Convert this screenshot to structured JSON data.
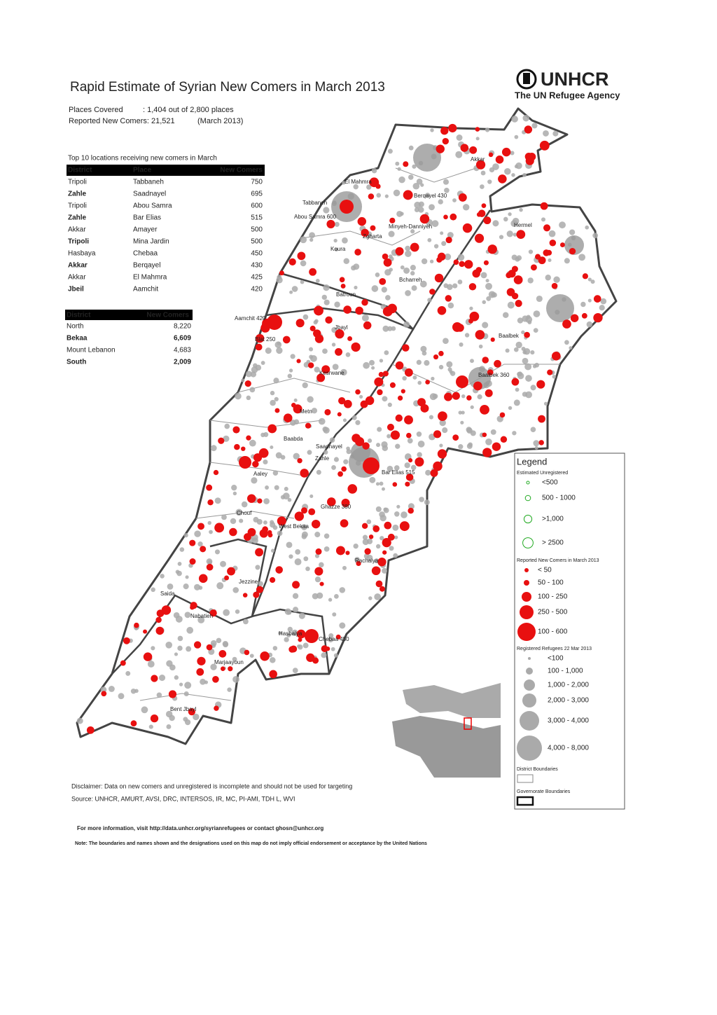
{
  "header": {
    "title": "Rapid Estimate of Syrian New Comers in March 2013",
    "logo_name": "UNHCR",
    "logo_tagline": "The UN Refugee Agency",
    "places_label": "Places Covered",
    "places_value": ": 1,404 out of 2,800 places",
    "reported_label": "Reported New Comers: 21,521",
    "reported_period": "(March 2013)"
  },
  "top_table": {
    "caption": "Top 10 locations receiving new comers in March",
    "columns": [
      "District",
      "Place",
      "New Comers"
    ],
    "rows": [
      [
        "Tripoli",
        "Tabbaneh",
        "750"
      ],
      [
        "Zahle",
        "Saadnayel",
        "695"
      ],
      [
        "Tripoli",
        "Abou Samra",
        "600"
      ],
      [
        "Zahle",
        "Bar Elias",
        "515"
      ],
      [
        "Akkar",
        "Amayer",
        "500"
      ],
      [
        "Tripoli",
        "Mina Jardin",
        "500"
      ],
      [
        "Hasbaya",
        "Chebaa",
        "450"
      ],
      [
        "Akkar",
        "Berqayel",
        "430"
      ],
      [
        "Akkar",
        "El Mahmra",
        "425"
      ],
      [
        "Jbeil",
        "Aamchit",
        "420"
      ]
    ]
  },
  "district_table": {
    "columns": [
      "District",
      "New Comers"
    ],
    "rows": [
      [
        "North",
        "8,220"
      ],
      [
        "Bekaa",
        "6,609"
      ],
      [
        "Mount Lebanon",
        "4,683"
      ],
      [
        "South",
        "2,009"
      ]
    ]
  },
  "map_labels": [
    "Akkar",
    "El Mahmra",
    "Tabbaneh",
    "Abou Samra 600",
    "Minyeh-Danniyeh",
    "Zgharta",
    "Koura",
    "Bcharreh",
    "Batroun",
    "Aamchit 420",
    "Jbayl",
    "Blat 250",
    "Hermel",
    "Baalbek",
    "Baalbek 360",
    "Kesrwane",
    "Metn",
    "Baabda",
    "Aaley",
    "Chouf",
    "Zahle",
    "Bar Elias 515",
    "West Bekaa",
    "Ghazze 380",
    "Rachaiya",
    "Hasbaiya",
    "Chebaa 450",
    "Marjaayoun",
    "Jezzine",
    "Saida",
    "Nabatieh",
    "Bent Jbayl",
    "Berqayel 430",
    "Saadnayel"
  ],
  "legend": {
    "title": "Legend",
    "unregistered_title": "Estimated Unregistered",
    "unregistered": [
      "<500",
      "500 - 1000",
      ">1,000",
      "> 2500"
    ],
    "newcomers_title": "Reported New Comers in March 2013",
    "newcomers": [
      "< 50",
      "50 - 100",
      "100 - 250",
      "250 - 500",
      "100 - 600"
    ],
    "registered_title": "Registered Refugees 22 Mar 2013",
    "registered": [
      "<100",
      "100 - 1,000",
      "1,000 - 2,000",
      "2,000 - 3,000",
      "3,000 - 4,000",
      "4,000 - 8,000"
    ],
    "district_boundaries": "District Boundaries",
    "governorate_boundaries": "Governorate Boundaries"
  },
  "footer": {
    "disclaimer": "Disclaimer: Data on new comers and unregistered is incomplete and should not be used for targeting",
    "source": "Source: UNHCR, AMURT, AVSI, DRC, INTERSOS, IR, MC, PI-AMI, TDH L, WVI",
    "info": "For more information, visit http://data.unhcr.org/syrianrefugees or contact ghosn@unhcr.org",
    "note": "Note: The boundaries and names shown and the designations used on this map do not imply official endorsement or acceptance by the United Nations"
  }
}
